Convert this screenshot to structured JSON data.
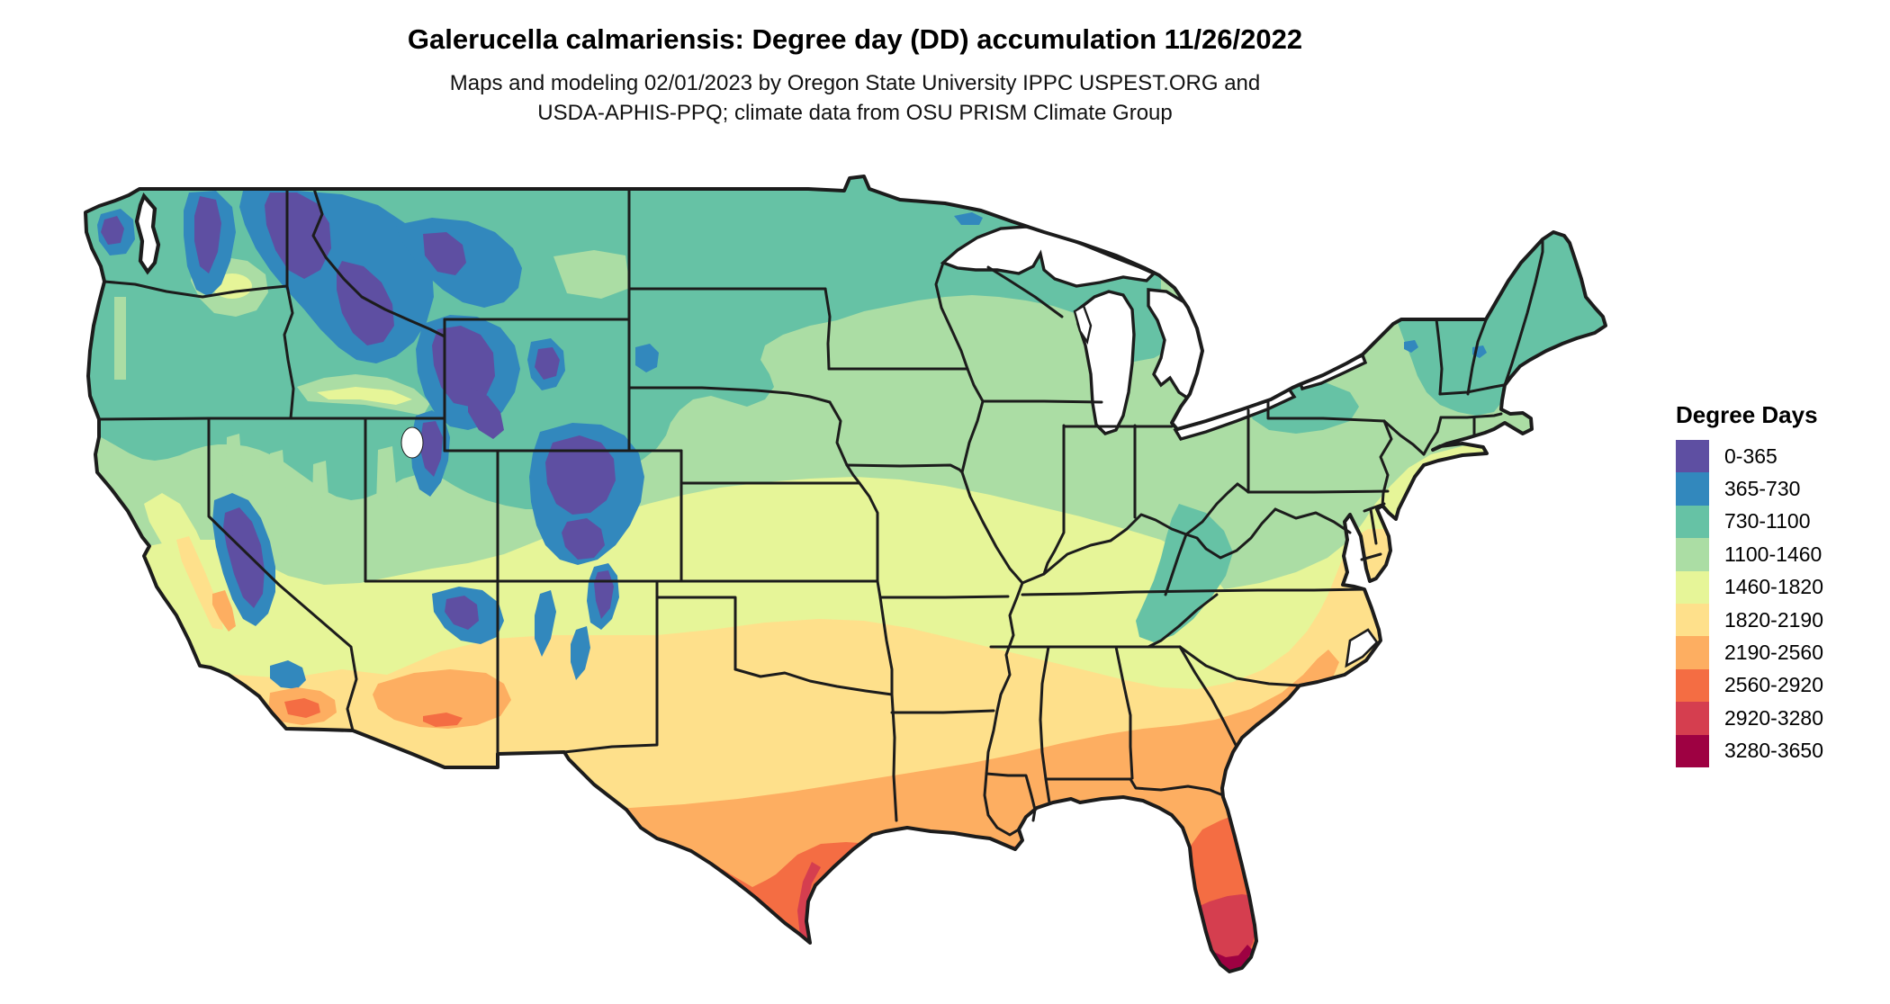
{
  "header": {
    "title": "Galerucella calmariensis: Degree day (DD) accumulation 11/26/2022",
    "subtitle_line1": "Maps and modeling 02/01/2023 by Oregon State University IPPC USPEST.ORG and",
    "subtitle_line2": "USDA-APHIS-PPQ; climate data from OSU PRISM Climate Group"
  },
  "legend": {
    "title": "Degree Days",
    "entries": [
      {
        "label": "0-365",
        "color": "#5e4fa2"
      },
      {
        "label": "365-730",
        "color": "#3288bd"
      },
      {
        "label": "730-1100",
        "color": "#66c2a5"
      },
      {
        "label": "1100-1460",
        "color": "#abdda4"
      },
      {
        "label": "1460-1820",
        "color": "#e6f598"
      },
      {
        "label": "1820-2190",
        "color": "#fee08b"
      },
      {
        "label": "2190-2560",
        "color": "#fdae61"
      },
      {
        "label": "2560-2920",
        "color": "#f46d43"
      },
      {
        "label": "2920-3280",
        "color": "#d53e4f"
      },
      {
        "label": "3280-3650",
        "color": "#9e0142"
      }
    ]
  },
  "map": {
    "region": "Continental United States",
    "ocean_color": "#ffffff",
    "lake_color": "#ffffff",
    "border_color": "#1c1c1c"
  }
}
